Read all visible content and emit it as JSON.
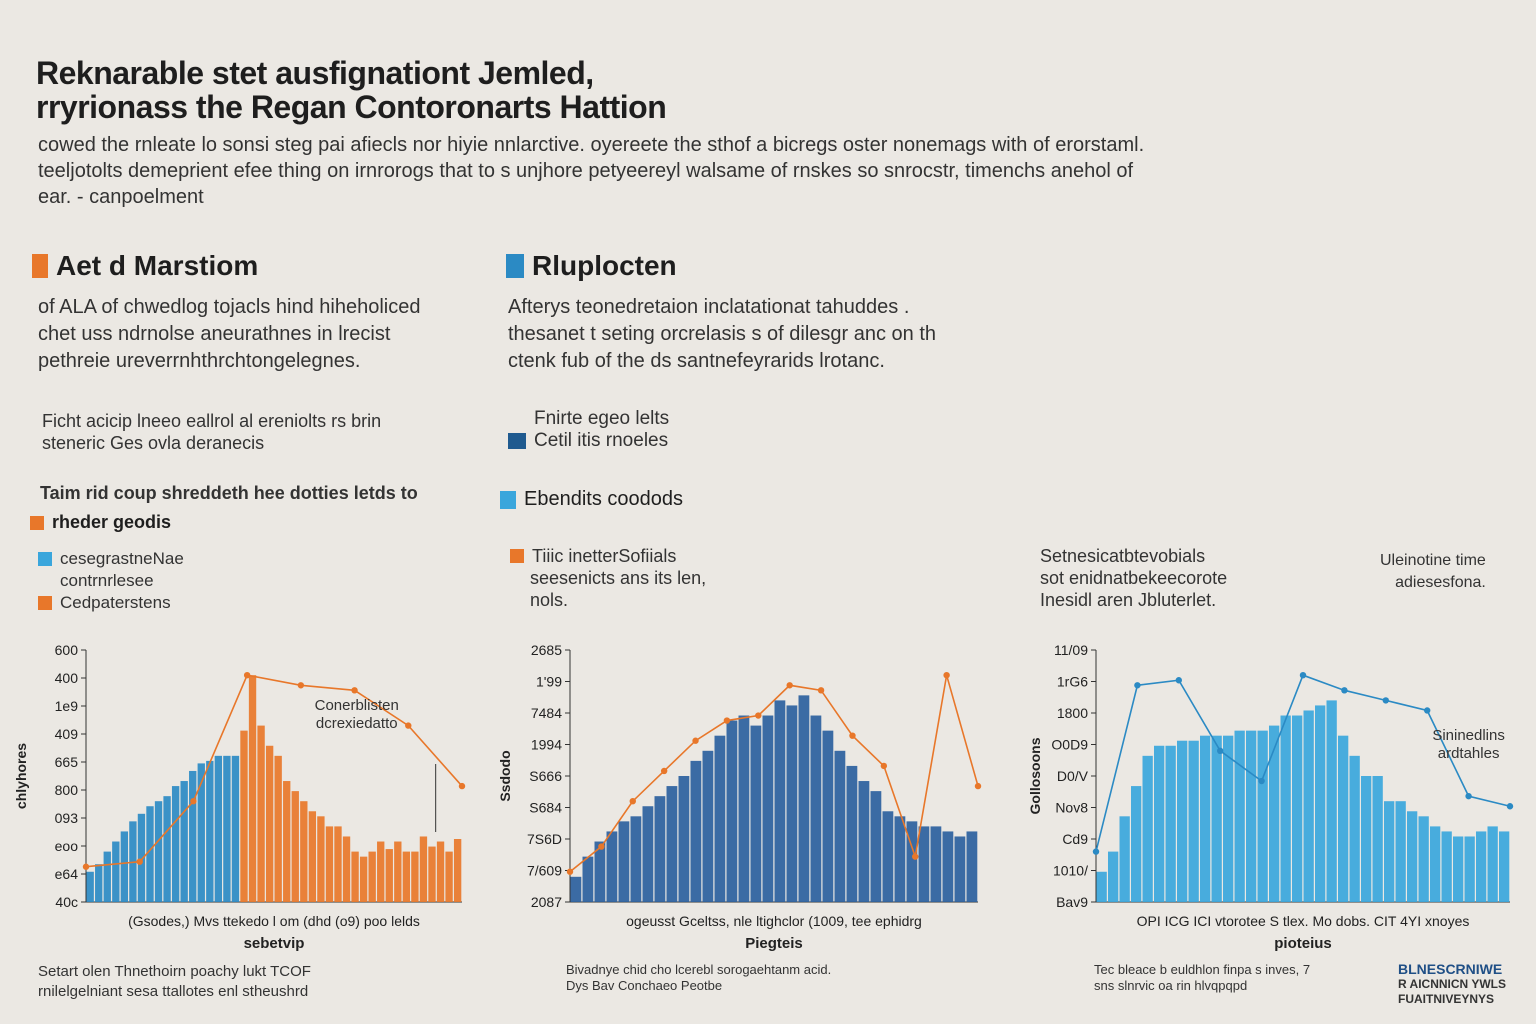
{
  "title": [
    "Reknarable stet ausfignationt Jemled,",
    "rryrionass the Regan Contoronarts Hattion"
  ],
  "intro": [
    "cowed the rnleate lo sonsi steg pai afiecls nor hiyie nnlarctive. oyereete the sthof a bicregs oster nonemags with of erorstaml.",
    "teeljotolts demeprient efee thing on irnrorogs that to s unjhore petyeereyl walsame of rnskes so snrocstr, timenchs anehol of",
    "ear. - canpoelment"
  ],
  "colors": {
    "orange": "#e8772a",
    "blue": "#2b8ac4",
    "darkblue": "#1f5a8f",
    "lightblue": "#3aa6dc"
  },
  "sections": [
    {
      "heading": "Aet d Marstiom",
      "desc": [
        "of ALA of chwedlog tojacls hind hiheholiced",
        "chet uss ndrnolse aneurathnes in lrecist",
        "pethreie ureverrnhthrchtongelegnes."
      ],
      "note": [
        "Ficht acicip lneeo eallrol al ereniolts rs brin",
        "steneric Ges ovla deranecis"
      ],
      "note2": "Taim rid coup shreddeth hee dotties letds to",
      "subhead": "rheder geodis",
      "legend": [
        "cesegrastneNae",
        "contrnrlesee",
        "Cedpaterstens"
      ]
    },
    {
      "heading": "Rluplocten",
      "desc": [
        "Afterys teonedretaion inclatationat tahuddes .",
        "thesanet t seting orcrelasis s of dilesgr anc on th",
        "ctenk fub of the ds santnefeyrarids lrotanc."
      ],
      "legend": [
        "Fnirte egeo lelts",
        "Cetil itis rnoeles"
      ],
      "subhead": "Ebendits coodods",
      "note": [
        "Tiiic inetterSofiials",
        "seesenicts ans its len,",
        "nols."
      ]
    },
    {
      "note": [
        "Setnesicatbtevobials",
        "sot enidnatbekeecorote",
        "Inesidl aren Jbluterlet."
      ],
      "ann_top": [
        "Uleinotine time",
        "adiesesfona."
      ]
    }
  ],
  "chart_data": [
    {
      "type": "bar",
      "xlabel": "(Gsodes,) Mvs ttekedo l om (dhd (o9) poo lelds",
      "caption": "sebetvip",
      "ylabel": "chlyhores",
      "yticks": [
        "600",
        "400",
        "1e9",
        "409",
        "665",
        "800",
        "093",
        "eoo",
        "e64",
        "40c"
      ],
      "annotation": [
        "Conerblisten",
        "dcrexiedatto"
      ],
      "series": [
        {
          "color": "#2b8ac4",
          "values": [
            12,
            15,
            20,
            24,
            28,
            32,
            35,
            38,
            40,
            42,
            46,
            48,
            52,
            55,
            56,
            58,
            58,
            58
          ]
        },
        {
          "color": "#e8772a",
          "values": [
            68,
            90,
            70,
            62,
            58,
            48,
            44,
            40,
            36,
            34,
            30,
            30,
            26,
            20,
            18,
            20,
            24,
            21,
            24,
            20,
            20,
            26,
            22,
            24,
            20,
            25
          ]
        }
      ],
      "line": {
        "color": "#e8772a",
        "values": [
          14,
          16,
          40,
          90,
          86,
          84,
          70,
          46
        ]
      },
      "footnote": [
        "Setart olen Thnethoirn poachy lukt TCOF",
        "rnilelgelniant sesa ttallotes enl stheushrd"
      ]
    },
    {
      "type": "bar",
      "xlabel": "ogeusst Gceltss, nle ltighclor (1009, tee ephidrg",
      "caption": "Piegteis",
      "ylabel": "Ssdodo",
      "yticks": [
        "2685",
        "1'99",
        "7484",
        "1994",
        "S666",
        "S684",
        "7S6D",
        "7/609",
        "2087"
      ],
      "series": [
        {
          "color": "#2b5f9e",
          "values": [
            10,
            18,
            24,
            28,
            32,
            34,
            38,
            42,
            46,
            50,
            56,
            60,
            66,
            72,
            74,
            70,
            74,
            80,
            78,
            82,
            74,
            68,
            60,
            54,
            48,
            44,
            36,
            34,
            32,
            30,
            30,
            28,
            26,
            28
          ]
        }
      ],
      "line": {
        "color": "#e8772a",
        "values": [
          12,
          22,
          40,
          52,
          64,
          72,
          74,
          86,
          84,
          66,
          54,
          18,
          90,
          46
        ]
      },
      "footnote": [
        "Bivadnye chid cho lcerebl sorogaehtanm acid.",
        "Dys Bav Conchaeo Peotbe"
      ]
    },
    {
      "type": "bar",
      "xlabel": "OPI ICG ICI vtorotee S tlex. Mo dobs. CIT 4YI xnoyes",
      "caption": "pioteius",
      "ylabel": "Gollosoons",
      "yticks": [
        "11/09",
        "1rG6",
        "1800",
        "O0D9",
        "D0/V",
        "Nov8",
        "Cd9",
        "1010/",
        "Bav9"
      ],
      "annotation": [
        "Sininedlins",
        "ardtahles"
      ],
      "series": [
        {
          "color": "#3aa6dc",
          "values": [
            12,
            20,
            34,
            46,
            58,
            62,
            62,
            64,
            64,
            66,
            66,
            66,
            68,
            68,
            68,
            70,
            74,
            74,
            76,
            78,
            80,
            66,
            58,
            50,
            50,
            40,
            40,
            36,
            34,
            30,
            28,
            26,
            26,
            28,
            30,
            28
          ]
        }
      ],
      "line": {
        "color": "#2b8ac4",
        "values": [
          20,
          86,
          88,
          60,
          48,
          90,
          84,
          80,
          76,
          42,
          38
        ]
      },
      "footnote": [
        "Tec bleace b euldhlon finpa s inves, 7",
        "sns slnrvic oa rin hlvqpqpd"
      ],
      "side": [
        "BLNESCRNIWE",
        "R AICNNICN YWLS",
        "FUAITNIVEYNYS"
      ]
    }
  ]
}
